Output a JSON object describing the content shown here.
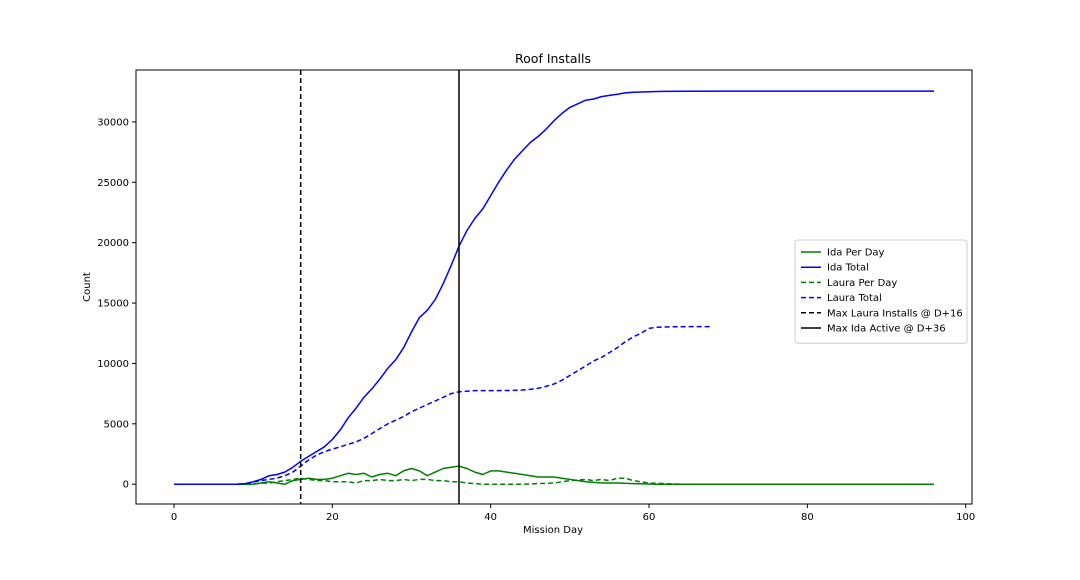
{
  "chart_data": {
    "type": "line",
    "title": "Roof Installs",
    "xlabel": "Mission Day",
    "ylabel": "Count",
    "xlim": [
      -4.8,
      100.8
    ],
    "ylim": [
      -1640,
      34300
    ],
    "xticks": [
      0,
      20,
      40,
      60,
      80,
      100
    ],
    "yticks": [
      0,
      5000,
      10000,
      15000,
      20000,
      25000,
      30000
    ],
    "grid": false,
    "legend_position": "center-right",
    "series": [
      {
        "name": "Ida Per Day",
        "color": "#008000",
        "dash": "solid",
        "x": [
          0,
          5,
          8,
          10,
          11,
          12,
          13,
          14,
          15,
          16,
          17,
          18,
          19,
          20,
          21,
          22,
          23,
          24,
          25,
          26,
          27,
          28,
          29,
          30,
          31,
          32,
          33,
          34,
          35,
          36,
          37,
          38,
          39,
          40,
          41,
          42,
          43,
          44,
          45,
          46,
          47,
          48,
          49,
          50,
          52,
          54,
          56,
          58,
          60,
          61,
          70,
          80,
          90,
          96
        ],
        "y": [
          0,
          0,
          0,
          0,
          100,
          200,
          100,
          0,
          300,
          400,
          500,
          400,
          400,
          500,
          700,
          900,
          800,
          900,
          600,
          800,
          900,
          700,
          1100,
          1300,
          1100,
          700,
          1000,
          1300,
          1400,
          1500,
          1300,
          1000,
          800,
          1100,
          1100,
          1000,
          900,
          800,
          700,
          600,
          600,
          600,
          500,
          400,
          200,
          100,
          100,
          50,
          20,
          0,
          0,
          0,
          0,
          0
        ]
      },
      {
        "name": "Ida Total",
        "color": "#0000ff",
        "dash": "solid",
        "x": [
          0,
          5,
          8,
          9,
          10,
          11,
          12,
          13,
          14,
          15,
          16,
          17,
          18,
          19,
          20,
          21,
          22,
          23,
          24,
          25,
          26,
          27,
          28,
          29,
          30,
          31,
          32,
          33,
          34,
          35,
          36,
          37,
          38,
          39,
          40,
          41,
          42,
          43,
          44,
          45,
          46,
          47,
          48,
          49,
          50,
          51,
          52,
          53,
          54,
          55,
          56,
          57,
          58,
          59,
          60,
          61,
          62,
          64,
          70,
          80,
          90,
          96
        ],
        "y": [
          0,
          0,
          0,
          50,
          200,
          400,
          700,
          800,
          1000,
          1400,
          1900,
          2300,
          2700,
          3100,
          3700,
          4500,
          5500,
          6300,
          7200,
          7900,
          8700,
          9600,
          10300,
          11300,
          12600,
          13800,
          14400,
          15300,
          16600,
          18100,
          19700,
          21000,
          22000,
          22800,
          23900,
          25000,
          26000,
          26900,
          27600,
          28300,
          28800,
          29400,
          30100,
          30700,
          31200,
          31500,
          31800,
          31900,
          32100,
          32200,
          32300,
          32400,
          32450,
          32480,
          32500,
          32520,
          32530,
          32540,
          32550,
          32550,
          32550,
          32550
        ]
      },
      {
        "name": "Laura Per Day",
        "color": "#008000",
        "dash": "dashed",
        "x": [
          0,
          5,
          8,
          10,
          12,
          13,
          14,
          15,
          16,
          17,
          18,
          19,
          20,
          21,
          22,
          23,
          24,
          25,
          26,
          27,
          28,
          29,
          30,
          31,
          32,
          33,
          34,
          35,
          36,
          37,
          38,
          39,
          40,
          42,
          44,
          46,
          48,
          50,
          52,
          53,
          54,
          55,
          56,
          57,
          58,
          59,
          60,
          62,
          64,
          68
        ],
        "y": [
          0,
          0,
          0,
          50,
          100,
          200,
          300,
          400,
          500,
          400,
          300,
          300,
          200,
          200,
          200,
          100,
          300,
          300,
          400,
          300,
          300,
          400,
          300,
          400,
          400,
          300,
          300,
          200,
          200,
          100,
          50,
          0,
          0,
          0,
          0,
          50,
          100,
          300,
          400,
          300,
          400,
          300,
          500,
          500,
          300,
          200,
          100,
          50,
          0,
          0
        ]
      },
      {
        "name": "Laura Total",
        "color": "#0000ff",
        "dash": "dashed",
        "x": [
          0,
          5,
          8,
          9,
          10,
          11,
          12,
          13,
          14,
          15,
          16,
          17,
          18,
          19,
          20,
          21,
          22,
          23,
          24,
          25,
          26,
          27,
          28,
          29,
          30,
          31,
          32,
          33,
          34,
          35,
          36,
          37,
          38,
          39,
          40,
          41,
          42,
          43,
          44,
          45,
          46,
          47,
          48,
          49,
          50,
          51,
          52,
          53,
          54,
          55,
          56,
          57,
          58,
          59,
          60,
          61,
          62,
          63,
          64,
          66,
          68
        ],
        "y": [
          0,
          0,
          0,
          50,
          200,
          300,
          400,
          500,
          700,
          1000,
          1500,
          2000,
          2400,
          2700,
          2900,
          3100,
          3300,
          3500,
          3800,
          4200,
          4600,
          5000,
          5300,
          5600,
          6000,
          6300,
          6600,
          6900,
          7200,
          7500,
          7650,
          7700,
          7750,
          7750,
          7750,
          7750,
          7760,
          7770,
          7800,
          7850,
          7950,
          8100,
          8300,
          8600,
          9000,
          9400,
          9800,
          10200,
          10500,
          10900,
          11300,
          11800,
          12200,
          12500,
          12900,
          13000,
          13020,
          13030,
          13040,
          13050,
          13050
        ]
      },
      {
        "name": "Max Laura Installs @ D+16",
        "color": "#000000",
        "dash": "dashed",
        "vline_x": 16
      },
      {
        "name": "Max Ida Active @ D+36",
        "color": "#000000",
        "dash": "solid",
        "vline_x": 36
      }
    ]
  }
}
